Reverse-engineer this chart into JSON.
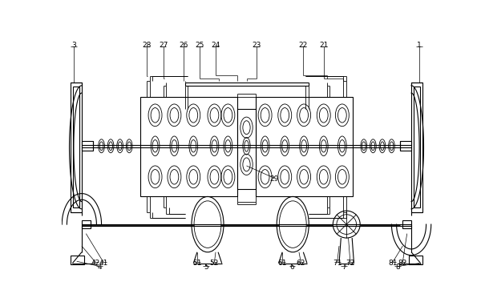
{
  "fig_width": 6.0,
  "fig_height": 3.77,
  "dpi": 100,
  "bg_color": "#ffffff"
}
